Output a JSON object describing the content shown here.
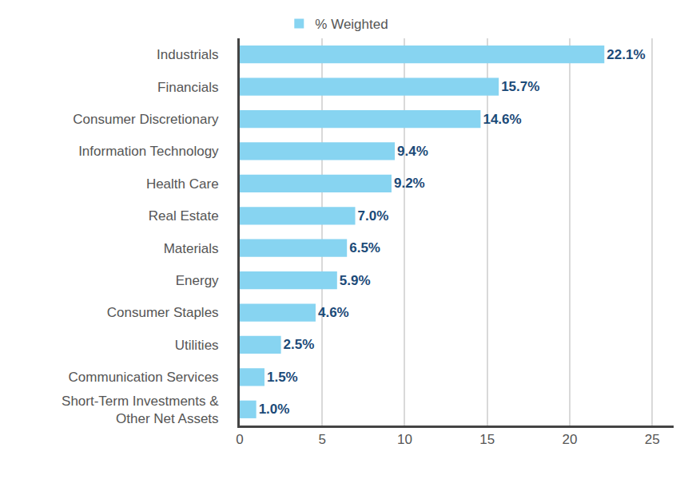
{
  "chart_data": {
    "type": "bar",
    "orientation": "horizontal",
    "categories": [
      "Industrials",
      "Financials",
      "Consumer Discretionary",
      "Information Technology",
      "Health Care",
      "Real Estate",
      "Materials",
      "Energy",
      "Consumer Staples",
      "Utilities",
      "Communication Services",
      "Short-Term Investments & Other Net Assets"
    ],
    "series": [
      {
        "name": "% Weighted",
        "color": "#87d4f1",
        "values": [
          22.1,
          15.7,
          14.6,
          9.4,
          9.2,
          7.0,
          6.5,
          5.9,
          4.6,
          2.5,
          1.5,
          1.0
        ],
        "value_labels": [
          "22.1%",
          "15.7%",
          "14.6%",
          "9.4%",
          "9.2%",
          "7.0%",
          "6.5%",
          "5.9%",
          "4.6%",
          "2.5%",
          "1.5%",
          "1.0%"
        ]
      }
    ],
    "xlim": [
      0,
      26.3
    ],
    "xticks": [
      0,
      5,
      10,
      15,
      20,
      25
    ],
    "grid": true,
    "legend": "top",
    "data_labels": true
  }
}
